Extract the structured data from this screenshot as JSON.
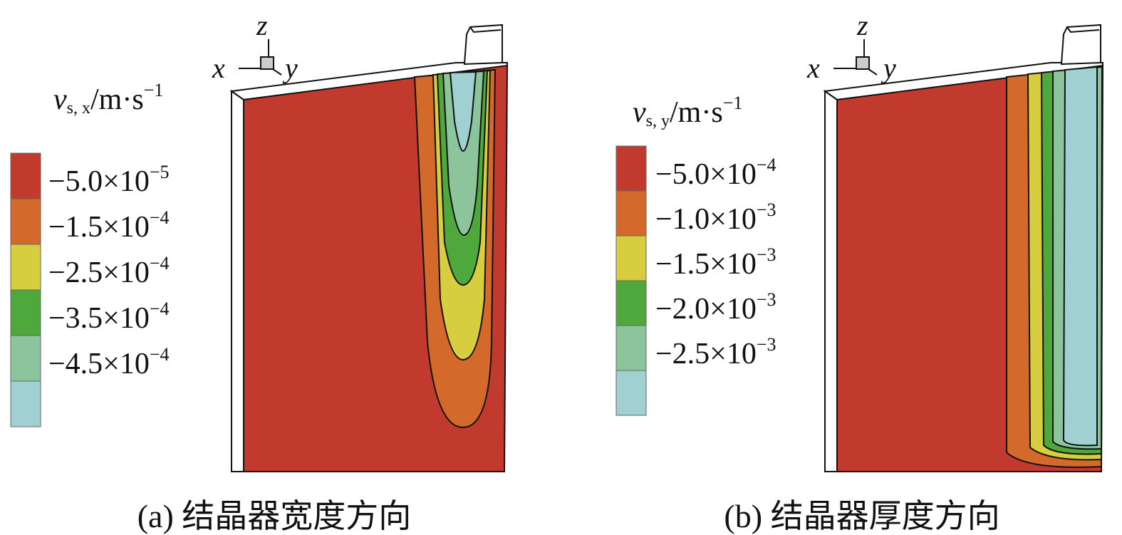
{
  "colors": {
    "red": "#c23a2e",
    "orange": "#d4692c",
    "yellow": "#d6cd3f",
    "green": "#4ea83b",
    "lightgreen": "#8cc59c",
    "lightblue": "#a0d0d2",
    "white": "#ffffff",
    "outline": "#111111"
  },
  "axes": {
    "x": "x",
    "y": "y",
    "z": "z"
  },
  "chart_data": [
    {
      "type": "heatmap",
      "subtype": "contour",
      "caption": "(a) 结晶器宽度方向",
      "title": {
        "var": "v",
        "sub": "s, x",
        "unit": "/m·s",
        "exp": "−1"
      },
      "legend": [
        {
          "mant": "−5.0×10",
          "exp": "−5",
          "value": -5e-05,
          "color": "#c23a2e"
        },
        {
          "mant": "−1.5×10",
          "exp": "−4",
          "value": -0.00015,
          "color": "#d4692c"
        },
        {
          "mant": "−2.5×10",
          "exp": "−4",
          "value": -0.00025,
          "color": "#d6cd3f"
        },
        {
          "mant": "−3.5×10",
          "exp": "−4",
          "value": -0.00035,
          "color": "#4ea83b"
        },
        {
          "mant": "−4.5×10",
          "exp": "−4",
          "value": -0.00045,
          "color": "#8cc59c"
        },
        {
          "mant": "",
          "exp": "",
          "value": null,
          "color": "#a0d0d2"
        }
      ]
    },
    {
      "type": "heatmap",
      "subtype": "contour",
      "caption": "(b) 结晶器厚度方向",
      "title": {
        "var": "v",
        "sub": "s, y",
        "unit": "/m·s",
        "exp": "−1"
      },
      "legend": [
        {
          "mant": "−5.0×10",
          "exp": "−4",
          "value": -0.0005,
          "color": "#c23a2e"
        },
        {
          "mant": "−1.0×10",
          "exp": "−3",
          "value": -0.001,
          "color": "#d4692c"
        },
        {
          "mant": "−1.5×10",
          "exp": "−3",
          "value": -0.0015,
          "color": "#d6cd3f"
        },
        {
          "mant": "−2.0×10",
          "exp": "−3",
          "value": -0.002,
          "color": "#4ea83b"
        },
        {
          "mant": "−2.5×10",
          "exp": "−3",
          "value": -0.0025,
          "color": "#8cc59c"
        },
        {
          "mant": "",
          "exp": "",
          "value": null,
          "color": "#a0d0d2"
        }
      ]
    }
  ]
}
